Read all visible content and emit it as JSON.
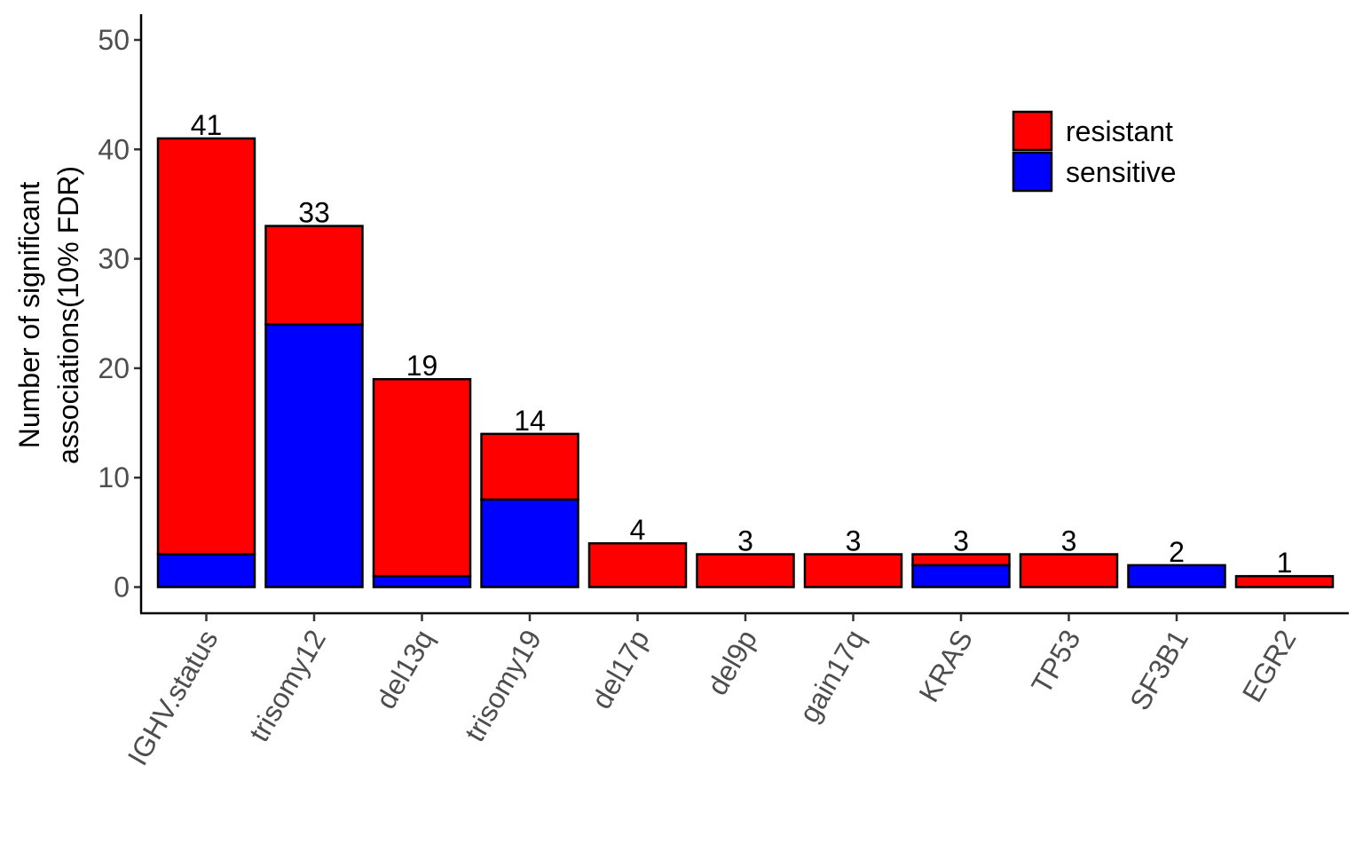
{
  "chart_data": {
    "type": "bar",
    "stacked": true,
    "title": "",
    "xlabel": "",
    "ylabel_lines": [
      "Number of significant",
      "associations(10% FDR)"
    ],
    "ylim": [
      0,
      50
    ],
    "yticks": [
      0,
      10,
      20,
      30,
      40,
      50
    ],
    "grid": false,
    "legend_position": "top-right",
    "categories": [
      "IGHV.status",
      "trisomy12",
      "del13q",
      "trisomy19",
      "del17p",
      "del9p",
      "gain17q",
      "KRAS",
      "TP53",
      "SF3B1",
      "EGR2"
    ],
    "series": [
      {
        "name": "sensitive",
        "color": "#0000ff",
        "values": [
          3,
          24,
          1,
          8,
          0,
          0,
          0,
          2,
          0,
          2,
          0
        ]
      },
      {
        "name": "resistant",
        "color": "#ff0000",
        "values": [
          38,
          9,
          18,
          6,
          4,
          3,
          3,
          1,
          3,
          0,
          1
        ]
      }
    ],
    "totals": [
      41,
      33,
      19,
      14,
      4,
      3,
      3,
      3,
      3,
      2,
      1
    ],
    "legend_order": [
      "resistant",
      "sensitive"
    ]
  }
}
